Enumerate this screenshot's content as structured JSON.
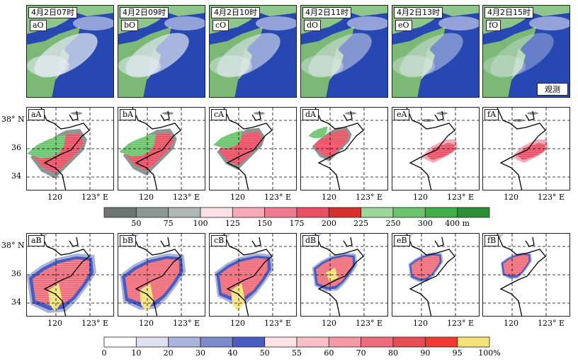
{
  "obs_row": {
    "panels": [
      {
        "time": "4月2日07时",
        "id": "aO"
      },
      {
        "time": "4月2日09时",
        "id": "bO"
      },
      {
        "time": "4月2日10时",
        "id": "cO"
      },
      {
        "time": "4月2日11时",
        "id": "dO"
      },
      {
        "time": "4月2日13时",
        "id": "eO"
      },
      {
        "time": "4月2日15时",
        "id": "fO"
      }
    ],
    "obs_label": "观测"
  },
  "row_a": {
    "ids": [
      "aA",
      "bA",
      "cA",
      "dA",
      "eA",
      "fA"
    ]
  },
  "row_b": {
    "ids": [
      "aB",
      "bB",
      "cB",
      "dB",
      "eB",
      "fB"
    ]
  },
  "axes": {
    "lat_ticks": [
      "38° N",
      "36",
      "34"
    ],
    "lon_ticks": [
      "120",
      "123° E"
    ]
  },
  "colorbar_height": {
    "labels": [
      "50",
      "75",
      "100",
      "125",
      "150",
      "175",
      "200",
      "225",
      "250",
      "300",
      "400 m"
    ],
    "colors": [
      "#6d7574",
      "#8e9694",
      "#b0b6b4",
      "#fbe1e6",
      "#f7a9b8",
      "#f07b90",
      "#ea4f63",
      "#d6302e",
      "#9ed79c",
      "#6cc46c",
      "#3fae45",
      "#2c8e36"
    ]
  },
  "colorbar_fraction": {
    "labels": [
      "0",
      "10",
      "20",
      "30",
      "40",
      "50",
      "55",
      "60",
      "70",
      "80",
      "90",
      "95",
      "100%"
    ],
    "colors": [
      "#ffffff",
      "#dde1ef",
      "#a9b3dc",
      "#7b89cd",
      "#4a5cbf",
      "#fde3e6",
      "#f9bfc6",
      "#f599a4",
      "#ef6d7b",
      "#e94b52",
      "#f43a30",
      "#f5e37a"
    ]
  }
}
